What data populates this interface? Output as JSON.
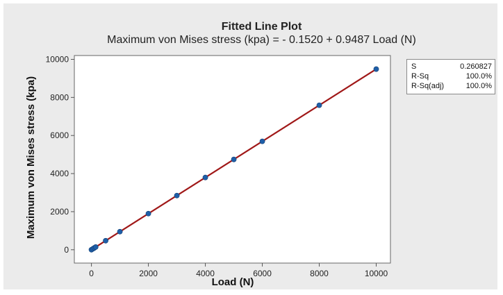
{
  "chart_data": {
    "type": "scatter",
    "title": "Fitted Line Plot",
    "subtitle": "Maximum von Mises stress (kpa) = - 0.1520 + 0.9487 Load (N)",
    "xlabel": "Load (N)",
    "ylabel": "Maximum von Mises stress (kpa)",
    "xlim": [
      -600,
      10500
    ],
    "ylim": [
      -700,
      10200
    ],
    "xticks": [
      0,
      2000,
      4000,
      6000,
      8000,
      10000
    ],
    "yticks": [
      0,
      2000,
      4000,
      6000,
      8000,
      10000
    ],
    "grid": false,
    "fit": {
      "intercept": -0.152,
      "slope": 0.9487,
      "color": "#a01818"
    },
    "points": {
      "color": "#1f5fa8",
      "x": [
        0,
        50,
        100,
        150,
        500,
        1000,
        2000,
        3000,
        4000,
        5000,
        6000,
        8000,
        10000
      ],
      "y": [
        0,
        47,
        95,
        142,
        474,
        949,
        1897,
        2846,
        3795,
        4743,
        5692,
        7590,
        9487
      ]
    },
    "stats": [
      {
        "label": "S",
        "value": "0.260827"
      },
      {
        "label": "R-Sq",
        "value": "100.0%"
      },
      {
        "label": "R-Sq(adj)",
        "value": "100.0%"
      }
    ]
  }
}
